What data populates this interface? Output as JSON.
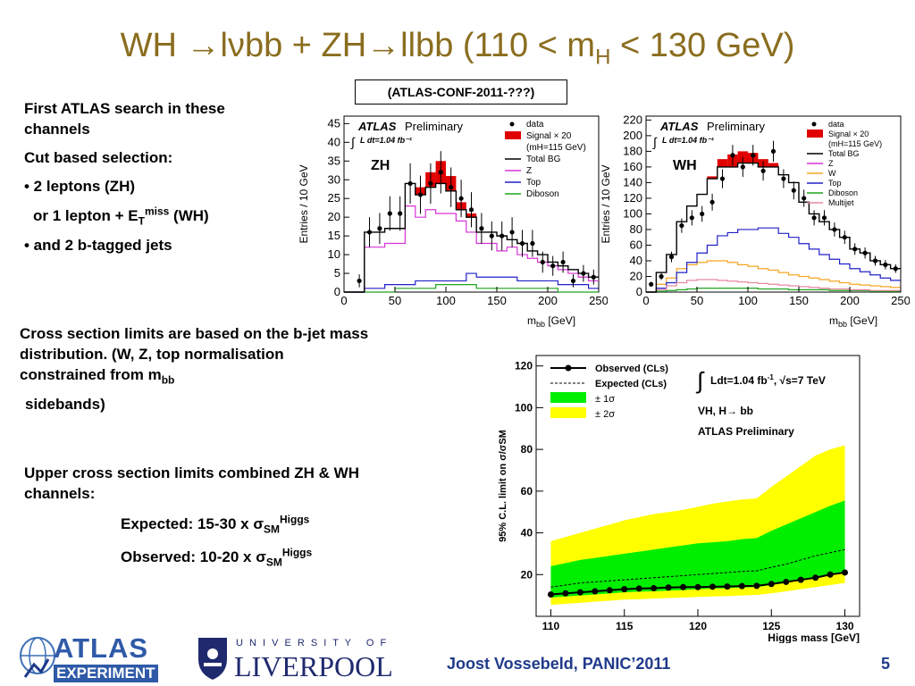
{
  "slide": {
    "title_pre": "WH ",
    "arrow": "→",
    "title_mid1": "l",
    "nu": "ν",
    "title_mid2": "bb + ZH",
    "title_mid3": "llbb (110 < m",
    "title_sub": "H",
    "title_end": " < 130 GeV)",
    "conf_note": "(ATLAS-CONF-2011-???)",
    "left_text": {
      "line1": "First ATLAS search in these",
      "line2": "channels",
      "line3": "Cut based selection:",
      "line4": "• 2 leptons (ZH)",
      "line5a": "or 1 lepton + E",
      "line5sub": "T",
      "line5sup": "miss",
      "line5b": " (WH)",
      "line6": "• and 2 b-tagged jets"
    },
    "mid_text": {
      "p1": "Cross section limits are based on the b-jet mass",
      "p2": "distribution.  (W, Z,  top normalisation",
      "p3a": "constrained from  m",
      "p3sub": "bb",
      "p4": " sidebands)"
    },
    "lower_text": {
      "p1": "Upper cross section limits combined ZH & WH",
      "p2": "channels:",
      "exp_a": "Expected:  15-30 x ",
      "exp_sigma": "σ",
      "exp_sub": "SM",
      "exp_sup": "Higgs",
      "obs_a": "Observed: 10-20 x ",
      "obs_sigma": "σ",
      "obs_sub": "SM",
      "obs_sup": "Higgs"
    },
    "footer": "Joost Vossebeld, PANIC’2011",
    "page": "5",
    "logo_atlas_1": "ATLAS",
    "logo_atlas_2": "EXPERIMENT",
    "logo_uni_1": "U N I V E R S I T Y   O F",
    "logo_uni_2": "LIVERPOOL"
  },
  "chart_data": [
    {
      "type": "bar",
      "panel": "ZH",
      "atlas": "ATLAS",
      "preliminary": "Preliminary",
      "lumi": "L dt=1.04 fb⁻¹",
      "xlabel": "m",
      "xlabel_sub": "bb",
      "xunit": "[GeV]",
      "ylabel": "Entries / 10 GeV",
      "xlim": [
        0,
        250
      ],
      "ylim": [
        0,
        47
      ],
      "xticks": [
        "0",
        "50",
        "100",
        "150",
        "200",
        "250"
      ],
      "yticks": [
        "0",
        "5",
        "10",
        "15",
        "20",
        "25",
        "30",
        "35",
        "40",
        "45"
      ],
      "legend": [
        "data",
        "Signal × 20",
        "(mH=115 GeV)",
        "Total BG",
        "Z",
        "Top",
        "Diboson"
      ],
      "colors": {
        "signal": "#e00000",
        "total": "#000000",
        "Z": "#d633d6",
        "Top": "#2020c8",
        "Diboson": "#1fa51f"
      },
      "bins": [
        5,
        15,
        25,
        35,
        45,
        55,
        65,
        75,
        85,
        95,
        105,
        115,
        125,
        135,
        145,
        155,
        165,
        175,
        185,
        195,
        205,
        215,
        225,
        235,
        245
      ],
      "data": [
        0,
        3,
        16,
        17,
        21,
        21,
        29,
        26,
        29,
        32,
        28,
        25,
        22,
        17,
        15,
        15,
        16,
        13,
        13,
        8,
        7,
        8,
        3,
        5,
        4
      ],
      "total_bg": [
        0,
        0,
        16,
        16,
        17,
        17,
        29,
        26,
        28,
        29,
        27,
        22,
        20,
        16,
        16,
        15,
        14,
        13,
        11,
        10,
        8,
        7,
        6,
        5,
        4
      ],
      "signal_stack": [
        0,
        0,
        16,
        16,
        17,
        17,
        29,
        28,
        32,
        35,
        31,
        24,
        21,
        16,
        16,
        15,
        14,
        13,
        11,
        10,
        8,
        7,
        6,
        5,
        4
      ],
      "Z": [
        0,
        0,
        12,
        12,
        13,
        13,
        23,
        20,
        22,
        21,
        21,
        19,
        16,
        13,
        13,
        11,
        12,
        10,
        9,
        8,
        7,
        6,
        5,
        4,
        3
      ],
      "Top": [
        0,
        0,
        1,
        1,
        2,
        2,
        2,
        3,
        3,
        3,
        3,
        3,
        5,
        4,
        4,
        4,
        4,
        3,
        3,
        3,
        3,
        2,
        2,
        2,
        1
      ],
      "Diboson": [
        0,
        0,
        0,
        0,
        0,
        1,
        1,
        1,
        1,
        2,
        2,
        2,
        2,
        1,
        1,
        1,
        1,
        1,
        1,
        1,
        1,
        0,
        0,
        0,
        0
      ],
      "label": "ZH"
    },
    {
      "type": "bar",
      "panel": "WH",
      "atlas": "ATLAS",
      "preliminary": "Preliminary",
      "lumi": "L dt=1.04 fb⁻¹",
      "xlabel": "m",
      "xlabel_sub": "bb",
      "xunit": "[GeV]",
      "ylabel": "Entries / 10 GeV",
      "xlim": [
        0,
        250
      ],
      "ylim": [
        0,
        225
      ],
      "xticks": [
        "0",
        "50",
        "100",
        "150",
        "200",
        "250"
      ],
      "yticks": [
        "0",
        "20",
        "40",
        "60",
        "80",
        "100",
        "120",
        "140",
        "160",
        "180",
        "200",
        "220"
      ],
      "legend": [
        "data",
        "Signal × 20",
        "(mH=115 GeV)",
        "Total BG",
        "Z",
        "W",
        "Top",
        "Diboson",
        "Multijet"
      ],
      "colors": {
        "signal": "#e00000",
        "total": "#000000",
        "Z": "#d633d6",
        "W": "#f5a623",
        "Top": "#2020c8",
        "Diboson": "#1fa51f",
        "Multijet": "#e88aa0"
      },
      "bins": [
        5,
        15,
        25,
        35,
        45,
        55,
        65,
        75,
        85,
        95,
        105,
        115,
        125,
        135,
        145,
        155,
        165,
        175,
        185,
        195,
        205,
        215,
        225,
        235,
        245
      ],
      "data": [
        10,
        20,
        45,
        85,
        95,
        100,
        115,
        145,
        175,
        160,
        175,
        155,
        180,
        145,
        130,
        120,
        95,
        95,
        80,
        70,
        55,
        50,
        40,
        35,
        30
      ],
      "total_bg": [
        0,
        25,
        48,
        90,
        110,
        125,
        145,
        160,
        160,
        165,
        165,
        160,
        160,
        150,
        140,
        115,
        100,
        90,
        80,
        70,
        55,
        50,
        40,
        35,
        30
      ],
      "signal_stack": [
        0,
        25,
        48,
        90,
        110,
        125,
        148,
        170,
        176,
        180,
        178,
        170,
        165,
        150,
        140,
        115,
        100,
        90,
        80,
        70,
        55,
        50,
        40,
        35,
        30
      ],
      "W": [
        0,
        10,
        18,
        30,
        35,
        38,
        40,
        40,
        38,
        35,
        33,
        30,
        28,
        25,
        22,
        20,
        18,
        16,
        14,
        12,
        10,
        9,
        8,
        7,
        6
      ],
      "Top": [
        0,
        5,
        12,
        25,
        38,
        50,
        60,
        72,
        76,
        80,
        80,
        82,
        82,
        75,
        70,
        62,
        55,
        48,
        42,
        36,
        30,
        26,
        22,
        18,
        15
      ],
      "Multijet": [
        0,
        3,
        8,
        12,
        15,
        16,
        16,
        15,
        14,
        13,
        12,
        11,
        10,
        9,
        8,
        7,
        6,
        5,
        4,
        4,
        3,
        3,
        2,
        2,
        2
      ],
      "Diboson": [
        0,
        1,
        2,
        3,
        4,
        5,
        5,
        5,
        5,
        5,
        5,
        4,
        4,
        4,
        3,
        3,
        3,
        3,
        2,
        2,
        2,
        2,
        1,
        1,
        1
      ],
      "label": "WH"
    },
    {
      "type": "line",
      "panel": "limit",
      "ylabel": "95% C.L. limit on σ/σSM",
      "xlabel": "Higgs mass [GeV]",
      "xlim": [
        109,
        131
      ],
      "ylim": [
        0,
        125
      ],
      "xticks": [
        "110",
        "115",
        "120",
        "125",
        "130"
      ],
      "yticks": [
        "20",
        "40",
        "60",
        "80",
        "100",
        "120"
      ],
      "legend": [
        "Observed (CLs)",
        "Expected (CLs)",
        "± 1σ",
        "± 2σ"
      ],
      "text1": "Ldt=1.04 fb",
      "text1_sup": "-1",
      "text1b": ",  √s=7 TeV",
      "integral": "∫",
      "text2": "VH, H→ bb",
      "text3": "ATLAS Preliminary",
      "colors": {
        "band1": "#00ee00",
        "band2": "#ffff00",
        "observed": "#000000",
        "expected": "#000000"
      },
      "x": [
        110,
        111,
        112,
        113,
        114,
        115,
        116,
        117,
        118,
        119,
        120,
        121,
        122,
        123,
        124,
        125,
        126,
        127,
        128,
        129,
        130
      ],
      "observed": [
        10.5,
        11,
        11.5,
        12,
        12.5,
        13,
        13.3,
        13.5,
        13.8,
        14,
        14,
        14.2,
        14.3,
        14.5,
        14.6,
        15.5,
        16.5,
        17.5,
        18.5,
        20,
        21
      ],
      "expected": [
        14,
        15,
        16,
        16.5,
        17,
        17.5,
        18,
        18.5,
        19,
        19.5,
        20,
        20.5,
        21,
        21.5,
        21.8,
        23.5,
        25,
        27,
        29,
        30.5,
        32
      ],
      "band1_lo": [
        9,
        9.5,
        10,
        10.5,
        11,
        11.5,
        11.8,
        12,
        12.3,
        12.6,
        13,
        13.2,
        13.5,
        13.8,
        14,
        15,
        16,
        17.5,
        19,
        20,
        21.5
      ],
      "band1_hi": [
        24,
        25.5,
        27,
        28,
        29,
        30,
        31,
        32,
        33,
        34,
        35,
        35.5,
        36,
        37,
        37.5,
        41,
        44,
        47,
        50,
        53,
        55.5
      ],
      "band2_lo": [
        5.5,
        6,
        6.5,
        7,
        7.5,
        8,
        8.2,
        8.5,
        8.8,
        9,
        9.3,
        9.5,
        9.7,
        10,
        10.3,
        11,
        12,
        13,
        14,
        15,
        16
      ],
      "band2_hi": [
        36,
        38,
        40,
        42,
        44,
        46,
        47.5,
        49,
        50,
        51,
        52.5,
        54,
        55,
        56,
        56.5,
        62,
        67,
        72,
        77,
        80,
        82
      ]
    }
  ]
}
